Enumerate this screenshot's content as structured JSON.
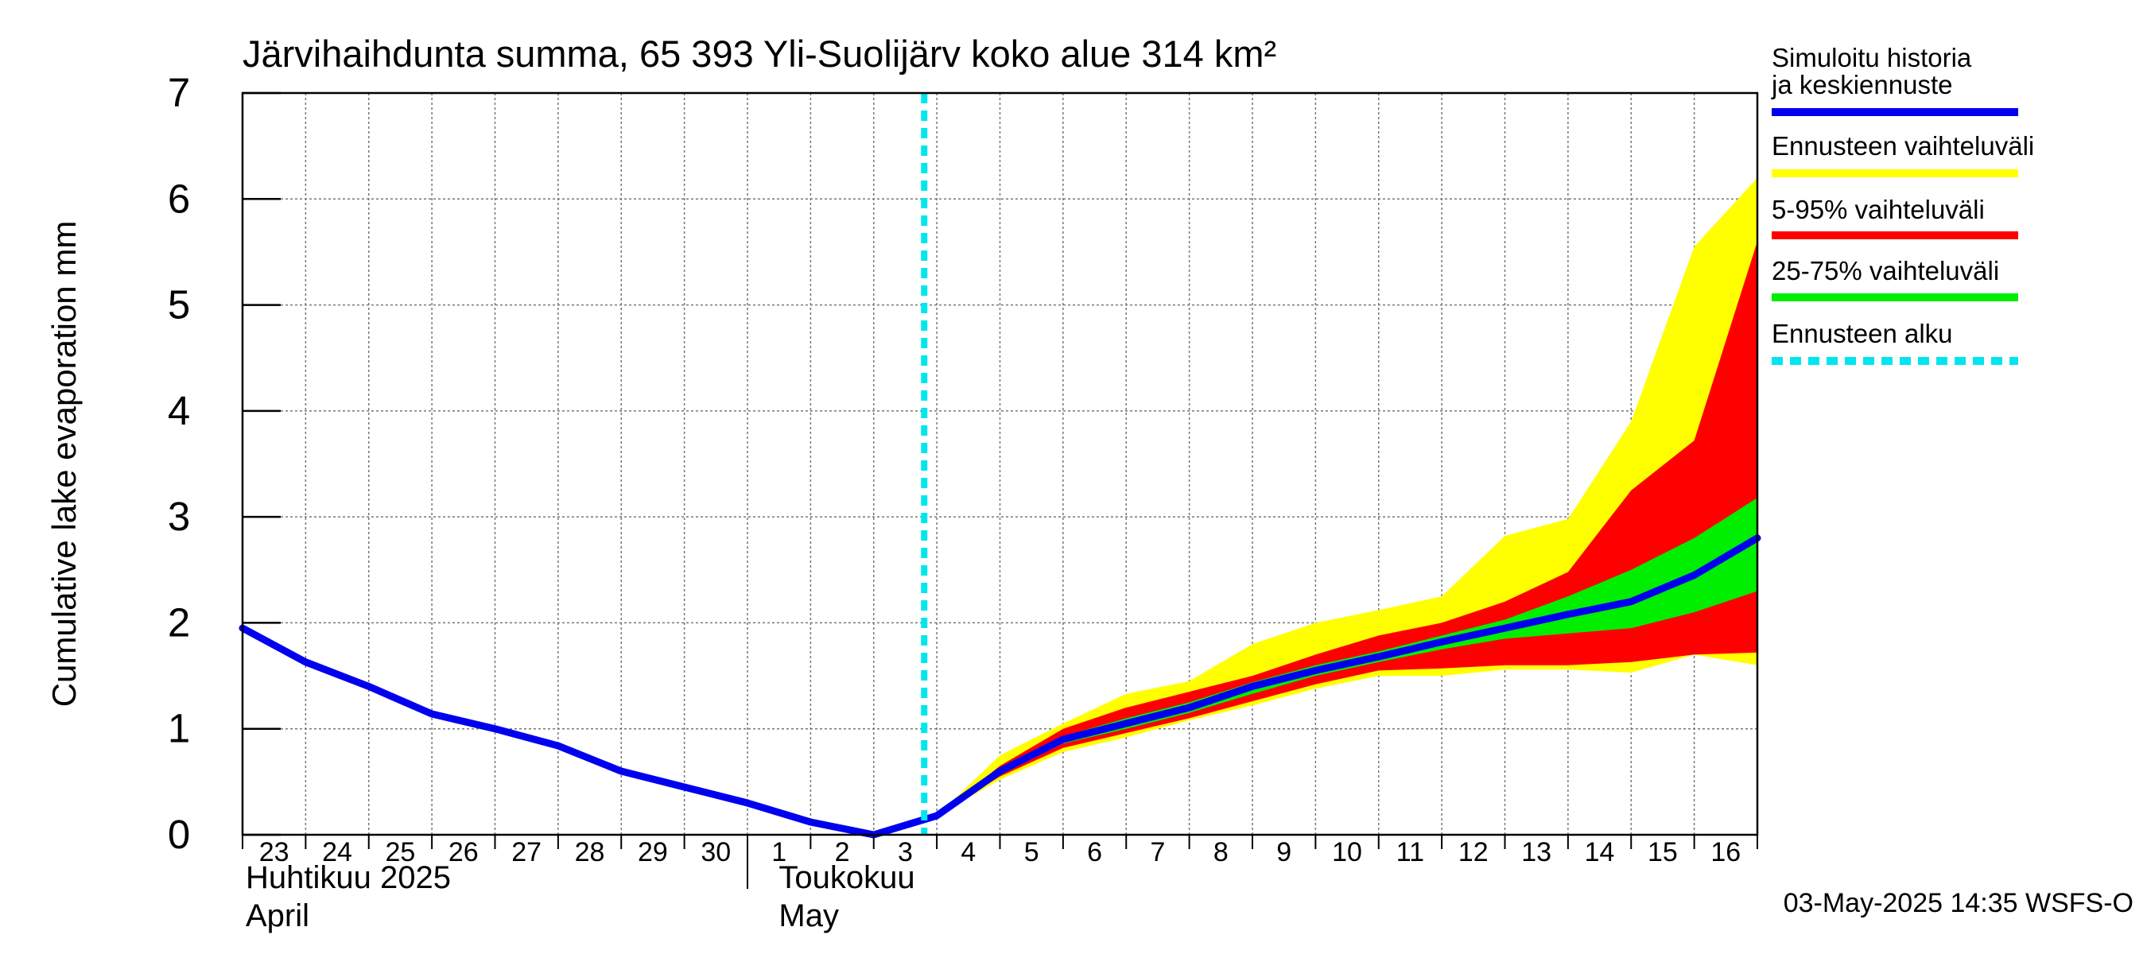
{
  "chart_data": {
    "type": "area",
    "title": "Järvihaihdunta summa, 65 393 Yli-Suolijärv koko alue 314 km²",
    "ylabel": "Cumulative lake evaporation   mm",
    "ylim": [
      0,
      7
    ],
    "yticks": [
      "0",
      "1",
      "2",
      "3",
      "4",
      "5",
      "6",
      "7"
    ],
    "x_tick_labels": [
      "23",
      "24",
      "25",
      "26",
      "27",
      "28",
      "29",
      "30",
      "1",
      "2",
      "3",
      "4",
      "5",
      "6",
      "7",
      "8",
      "9",
      "10",
      "11",
      "12",
      "13",
      "14",
      "15",
      "16"
    ],
    "month_labels": [
      {
        "fi": "Huhtikuu  2025",
        "en": "April"
      },
      {
        "fi": "Toukokuu",
        "en": "May"
      }
    ],
    "forecast_start_day": 10.8,
    "grid": true,
    "legend_position": "right",
    "legend": [
      {
        "label": "Simuloitu historia ja keskiennuste",
        "color": "#0000ee",
        "style": "solid"
      },
      {
        "label": "Ennusteen vaihteluväli",
        "color": "#ffff00",
        "style": "solid"
      },
      {
        "label": "5-95% vaihteluväli",
        "color": "#ff0000",
        "style": "solid"
      },
      {
        "label": "25-75% vaihteluväli",
        "color": "#00ee00",
        "style": "solid"
      },
      {
        "label": "Ennusteen alku",
        "color": "#00e5ee",
        "style": "dashed"
      }
    ],
    "series": [
      {
        "name": "Simuloitu historia ja keskiennuste",
        "color": "#0000ee",
        "x": [
          0,
          1,
          2,
          3,
          4,
          5,
          6,
          7,
          8,
          9,
          10,
          11,
          12,
          13,
          14,
          15,
          16,
          17,
          18,
          19,
          20,
          21,
          22,
          23,
          24
        ],
        "values": [
          1.95,
          1.63,
          1.4,
          1.14,
          1.0,
          0.84,
          0.6,
          0.45,
          0.3,
          0.12,
          0.0,
          0.18,
          0.6,
          0.9,
          1.05,
          1.2,
          1.4,
          1.55,
          1.68,
          1.82,
          1.95,
          2.08,
          2.2,
          2.45,
          2.8
        ]
      }
    ],
    "bands": [
      {
        "name": "Ennusteen vaihteluväli",
        "color": "#ffff00",
        "x": [
          10,
          11,
          12,
          13,
          14,
          15,
          16,
          17,
          18,
          19,
          20,
          21,
          22,
          23,
          24
        ],
        "upper": [
          0.0,
          0.18,
          0.75,
          1.05,
          1.33,
          1.45,
          1.8,
          2.0,
          2.12,
          2.25,
          2.82,
          2.98,
          3.9,
          5.55,
          6.2
        ],
        "lower": [
          0.0,
          0.18,
          0.52,
          0.78,
          0.92,
          1.08,
          1.22,
          1.38,
          1.5,
          1.5,
          1.56,
          1.56,
          1.53,
          1.7,
          1.6
        ]
      },
      {
        "name": "5-95% vaihteluväli",
        "color": "#ff0000",
        "x": [
          10,
          11,
          12,
          13,
          14,
          15,
          16,
          17,
          18,
          19,
          20,
          21,
          22,
          23,
          24
        ],
        "upper": [
          0.0,
          0.18,
          0.65,
          1.0,
          1.2,
          1.35,
          1.5,
          1.7,
          1.88,
          2.0,
          2.2,
          2.48,
          3.25,
          3.72,
          5.6
        ],
        "lower": [
          0.0,
          0.18,
          0.55,
          0.82,
          0.96,
          1.1,
          1.26,
          1.42,
          1.55,
          1.57,
          1.6,
          1.6,
          1.63,
          1.7,
          1.72
        ]
      },
      {
        "name": "25-75% vaihteluväli",
        "color": "#00ee00",
        "x": [
          10,
          11,
          12,
          13,
          14,
          15,
          16,
          17,
          18,
          19,
          20,
          21,
          22,
          23,
          24
        ],
        "upper": [
          0.0,
          0.18,
          0.62,
          0.93,
          1.1,
          1.25,
          1.44,
          1.6,
          1.73,
          1.88,
          2.03,
          2.25,
          2.5,
          2.8,
          3.18
        ],
        "lower": [
          0.0,
          0.18,
          0.58,
          0.86,
          1.0,
          1.15,
          1.33,
          1.5,
          1.63,
          1.75,
          1.85,
          1.9,
          1.95,
          2.1,
          2.3
        ]
      }
    ]
  },
  "footer": {
    "timestamp": "03-May-2025 14:35 WSFS-O"
  }
}
